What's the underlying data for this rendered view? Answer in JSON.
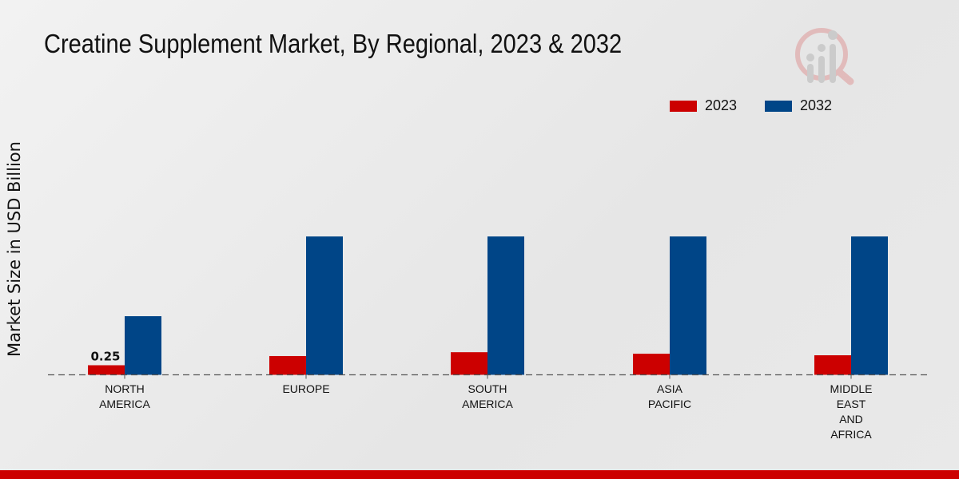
{
  "chart_data": {
    "type": "bar",
    "title": "Creatine Supplement Market, By Regional, 2023 & 2032",
    "xlabel": "",
    "ylabel": "Market Size in USD Billion",
    "ylim": [
      0,
      6.5
    ],
    "categories": [
      [
        "NORTH",
        "AMERICA"
      ],
      [
        "EUROPE"
      ],
      [
        "SOUTH",
        "AMERICA"
      ],
      [
        "ASIA",
        "PACIFIC"
      ],
      [
        "MIDDLE",
        "EAST",
        "AND",
        "AFRICA"
      ]
    ],
    "series": [
      {
        "name": "2023",
        "color": "#cc0000",
        "values": [
          0.25,
          0.49,
          0.59,
          0.55,
          0.51
        ]
      },
      {
        "name": "2032",
        "color": "#004587",
        "values": [
          1.53,
          3.61,
          3.61,
          3.61,
          3.61
        ]
      }
    ],
    "data_labels": [
      {
        "series": 0,
        "index": 0,
        "text": "0.25"
      }
    ],
    "legend_position": "top-right",
    "grid": false
  }
}
